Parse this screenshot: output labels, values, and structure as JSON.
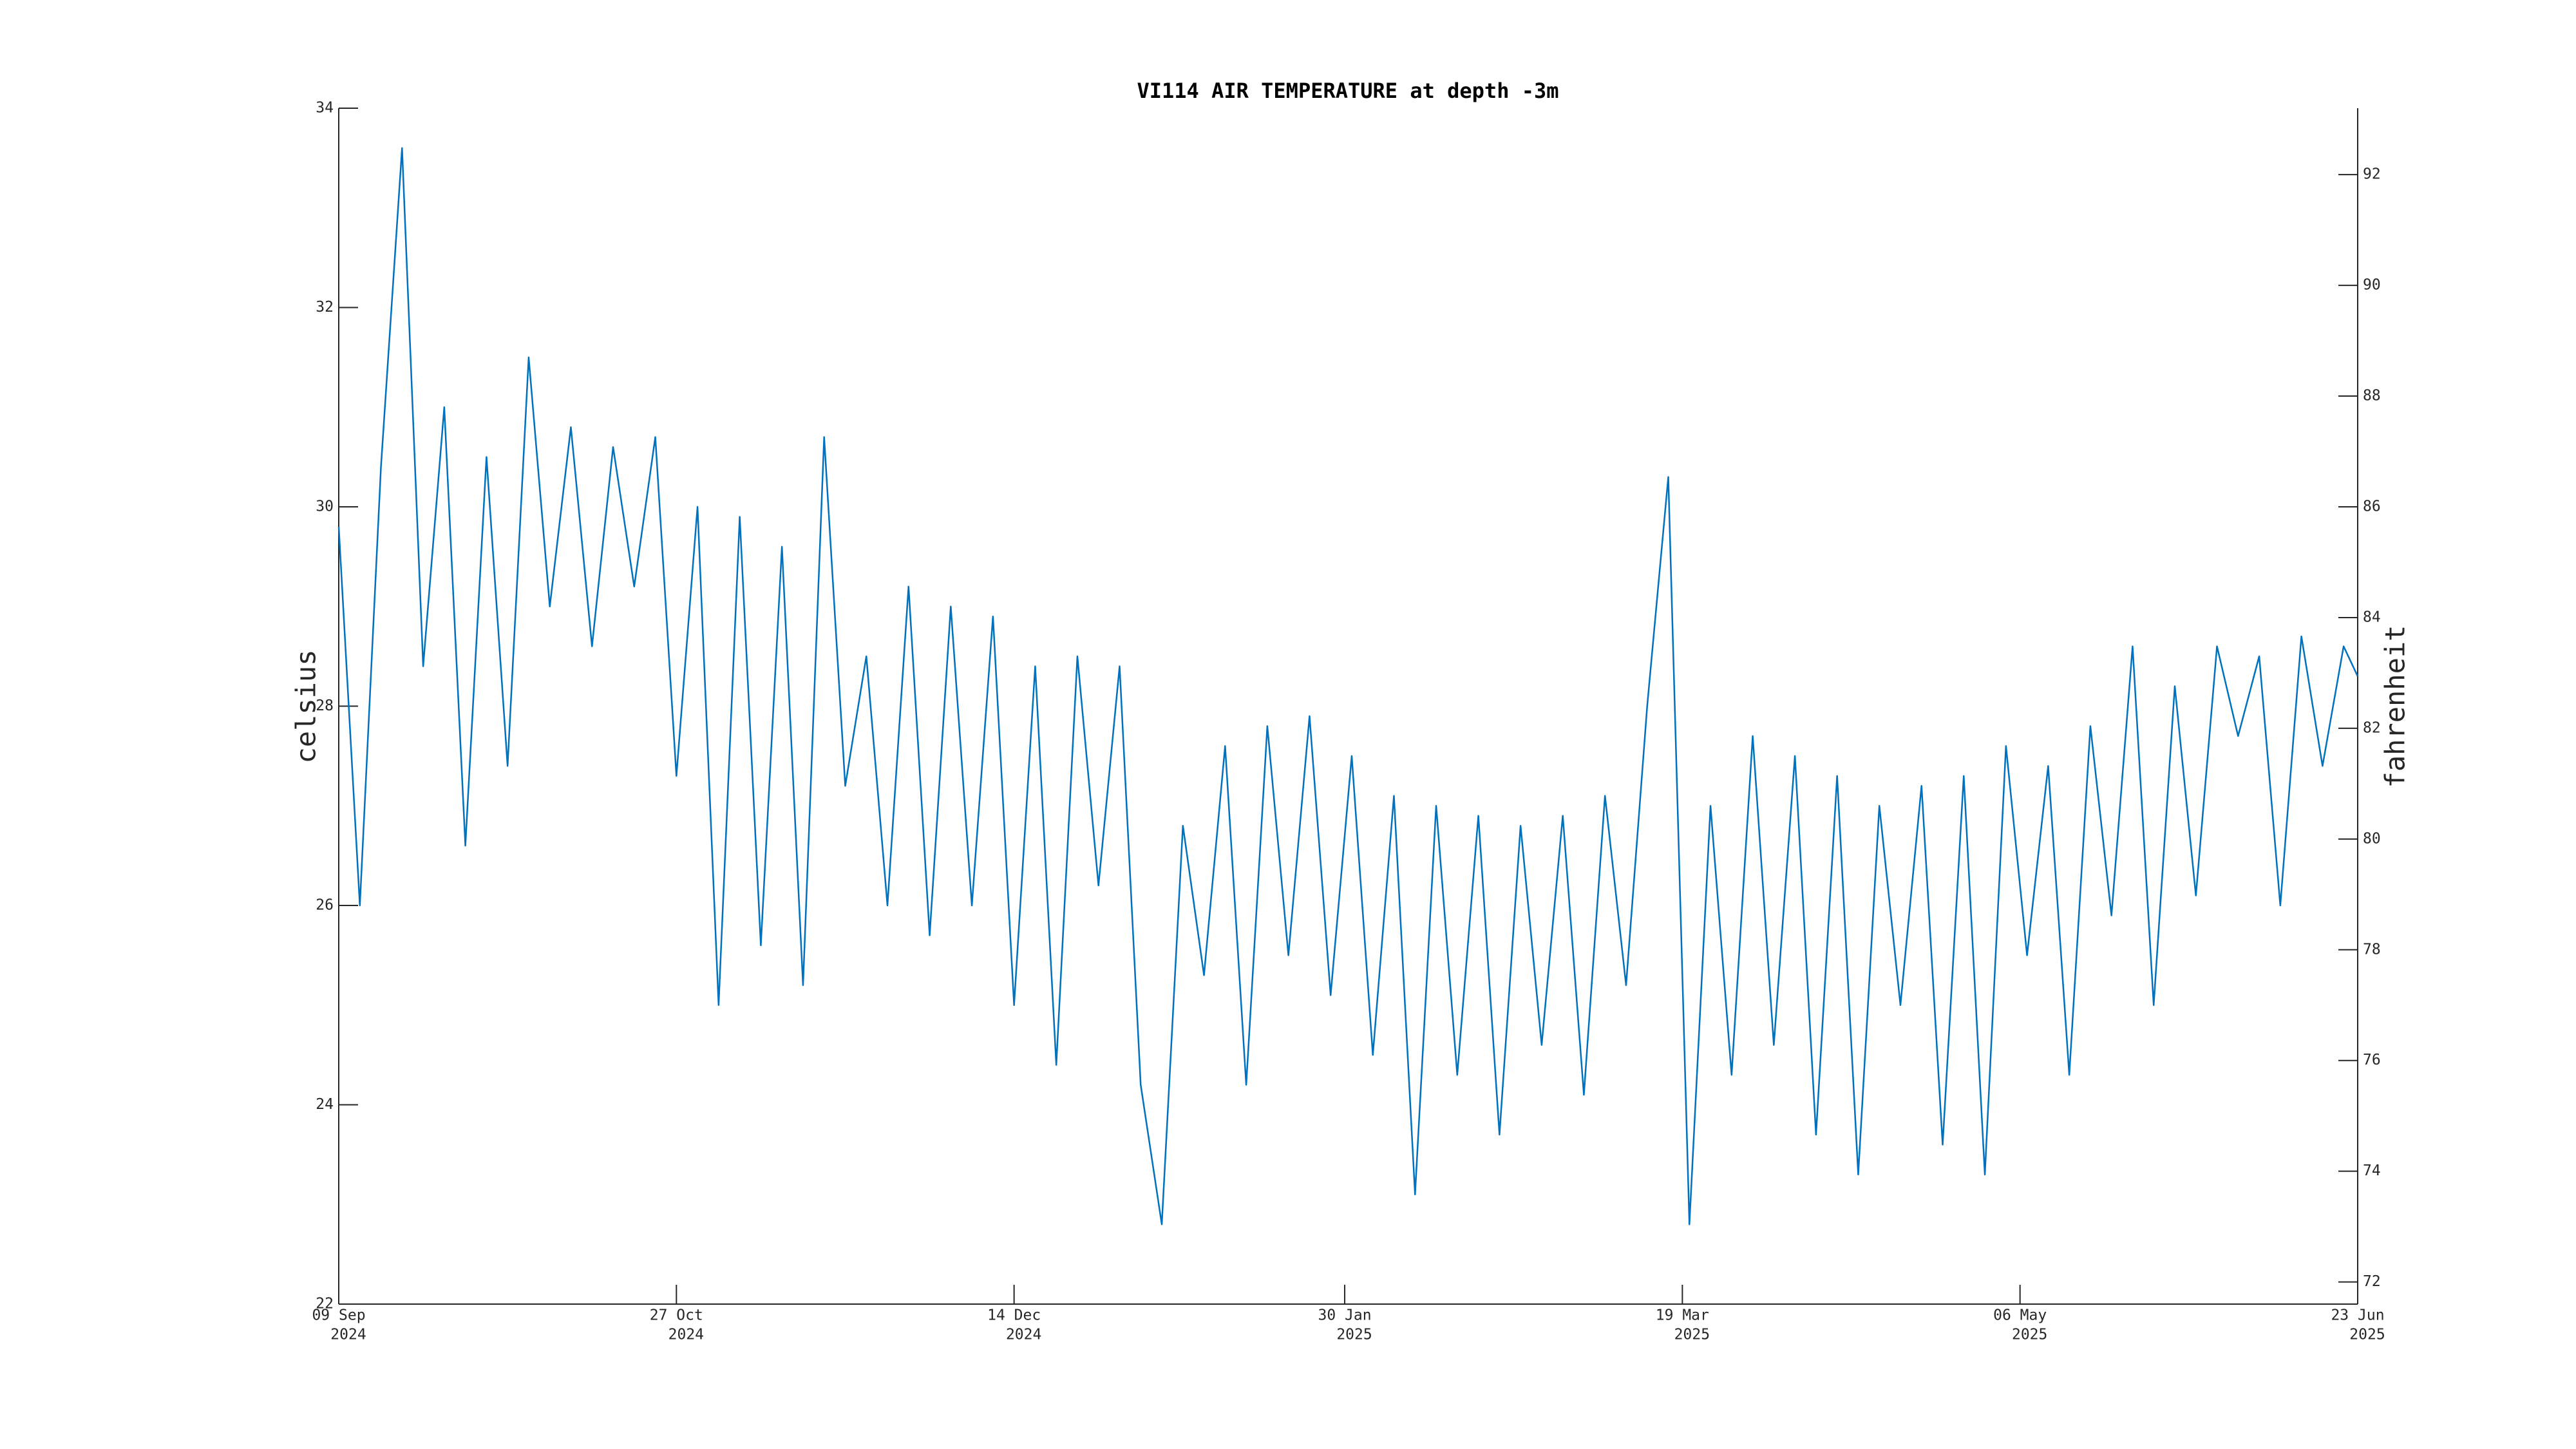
{
  "chart_data": {
    "type": "line",
    "title": "VI114 AIR TEMPERATURE at depth -3m",
    "ylabel": "celsius",
    "y2label": "fahrenheit",
    "color": "#0072bd",
    "x": [
      "2024-09-09",
      "2024-09-12",
      "2024-09-15",
      "2024-09-18",
      "2024-09-21",
      "2024-09-24",
      "2024-09-27",
      "2024-09-30",
      "2024-10-03",
      "2024-10-06",
      "2024-10-09",
      "2024-10-12",
      "2024-10-15",
      "2024-10-18",
      "2024-10-21",
      "2024-10-24",
      "2024-10-27",
      "2024-10-30",
      "2024-11-02",
      "2024-11-05",
      "2024-11-08",
      "2024-11-11",
      "2024-11-14",
      "2024-11-17",
      "2024-11-20",
      "2024-11-23",
      "2024-11-26",
      "2024-11-29",
      "2024-12-02",
      "2024-12-05",
      "2024-12-08",
      "2024-12-11",
      "2024-12-14",
      "2024-12-17",
      "2024-12-20",
      "2024-12-23",
      "2024-12-26",
      "2024-12-29",
      "2025-01-01",
      "2025-01-04",
      "2025-01-07",
      "2025-01-10",
      "2025-01-13",
      "2025-01-16",
      "2025-01-19",
      "2025-01-22",
      "2025-01-25",
      "2025-01-28",
      "2025-01-31",
      "2025-02-03",
      "2025-02-06",
      "2025-02-09",
      "2025-02-12",
      "2025-02-15",
      "2025-02-18",
      "2025-02-21",
      "2025-02-24",
      "2025-02-27",
      "2025-03-02",
      "2025-03-05",
      "2025-03-08",
      "2025-03-11",
      "2025-03-14",
      "2025-03-17",
      "2025-03-20",
      "2025-03-23",
      "2025-03-26",
      "2025-03-29",
      "2025-04-01",
      "2025-04-04",
      "2025-04-07",
      "2025-04-10",
      "2025-04-13",
      "2025-04-16",
      "2025-04-19",
      "2025-04-22",
      "2025-04-25",
      "2025-04-28",
      "2025-05-01",
      "2025-05-04",
      "2025-05-07",
      "2025-05-10",
      "2025-05-13",
      "2025-05-16",
      "2025-05-19",
      "2025-05-22",
      "2025-05-25",
      "2025-05-28",
      "2025-05-31",
      "2025-06-03",
      "2025-06-06",
      "2025-06-09",
      "2025-06-12",
      "2025-06-15",
      "2025-06-18",
      "2025-06-21",
      "2025-06-23"
    ],
    "values": [
      29.8,
      26.0,
      30.4,
      33.6,
      28.4,
      31.0,
      26.6,
      30.5,
      27.4,
      31.5,
      29.0,
      30.8,
      28.6,
      30.6,
      29.2,
      30.7,
      27.3,
      30.0,
      25.0,
      29.9,
      25.6,
      29.6,
      25.2,
      30.7,
      27.2,
      28.5,
      26.0,
      29.2,
      25.7,
      29.0,
      26.0,
      28.9,
      25.0,
      28.4,
      24.4,
      28.5,
      26.2,
      28.4,
      24.2,
      22.8,
      26.8,
      25.3,
      27.6,
      24.2,
      27.8,
      25.5,
      27.9,
      25.1,
      27.5,
      24.5,
      27.1,
      23.1,
      27.0,
      24.3,
      26.9,
      23.7,
      26.8,
      24.6,
      26.9,
      24.1,
      27.1,
      25.2,
      28.0,
      30.3,
      22.8,
      27.0,
      24.3,
      27.7,
      24.6,
      27.5,
      23.7,
      27.3,
      23.3,
      27.0,
      25.0,
      27.2,
      23.6,
      27.3,
      23.3,
      27.6,
      25.5,
      27.4,
      24.3,
      27.8,
      25.9,
      28.6,
      25.0,
      28.2,
      26.1,
      28.6,
      27.7,
      28.5,
      26.0,
      28.7,
      27.4,
      28.6,
      28.3
    ],
    "xlim": [
      "2024-09-09",
      "2025-06-23"
    ],
    "xticks": [
      {
        "value": "2024-09-09",
        "label": [
          "09 Sep",
          "2024"
        ]
      },
      {
        "value": "2024-10-27",
        "label": [
          "27 Oct",
          "2024"
        ]
      },
      {
        "value": "2024-12-14",
        "label": [
          "14 Dec",
          "2024"
        ]
      },
      {
        "value": "2025-01-30",
        "label": [
          "30 Jan",
          "2025"
        ]
      },
      {
        "value": "2025-03-19",
        "label": [
          "19 Mar",
          "2025"
        ]
      },
      {
        "value": "2025-05-06",
        "label": [
          "06 May",
          "2025"
        ]
      },
      {
        "value": "2025-06-23",
        "label": [
          "23 Jun",
          "2025"
        ]
      }
    ],
    "ylim": [
      22,
      34
    ],
    "yticks": [
      22,
      24,
      26,
      28,
      30,
      32,
      34
    ],
    "y2lim": [
      71.6,
      93.2
    ],
    "y2ticks": [
      72,
      74,
      76,
      78,
      80,
      82,
      84,
      86,
      88,
      90,
      92
    ],
    "grid": false
  }
}
